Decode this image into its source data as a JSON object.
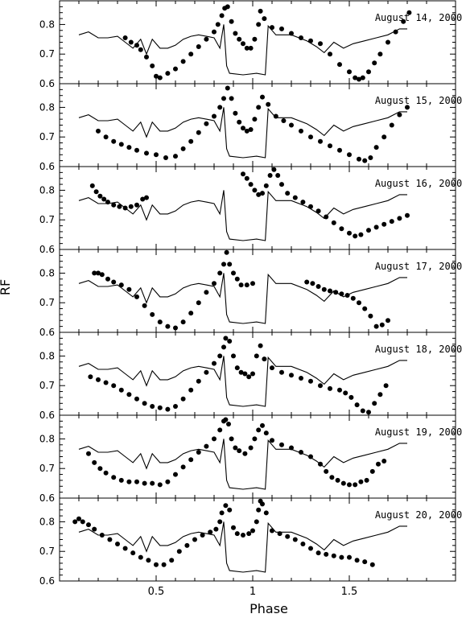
{
  "figure": {
    "xlabel": "Phase",
    "ylabel": "RF"
  },
  "chart_data": {
    "type": "scatter",
    "xlabel": "Phase",
    "ylabel": "RF",
    "xlim": [
      0.0,
      2.05
    ],
    "xticks": [
      0.5,
      1,
      1.5
    ],
    "xtick_labels": [
      "0.5",
      "1",
      "1.5"
    ],
    "panel_ylim": [
      0.6,
      0.88
    ],
    "yticks": [
      0.6,
      0.7,
      0.8
    ],
    "ytick_labels": [
      "0.6",
      "0.7",
      "0.8"
    ],
    "model_curve": {
      "x": [
        0.1,
        0.15,
        0.2,
        0.25,
        0.3,
        0.34,
        0.38,
        0.42,
        0.45,
        0.48,
        0.52,
        0.56,
        0.6,
        0.64,
        0.68,
        0.72,
        0.76,
        0.8,
        0.83,
        0.85,
        0.865,
        0.88,
        0.95,
        1.02,
        1.065,
        1.08,
        1.12,
        1.2,
        1.28,
        1.33,
        1.37,
        1.42,
        1.47,
        1.52,
        1.58,
        1.64,
        1.7,
        1.76,
        1.8
      ],
      "y": [
        0.765,
        0.775,
        0.755,
        0.755,
        0.76,
        0.74,
        0.72,
        0.75,
        0.7,
        0.75,
        0.72,
        0.72,
        0.73,
        0.75,
        0.76,
        0.765,
        0.76,
        0.755,
        0.72,
        0.8,
        0.66,
        0.635,
        0.63,
        0.635,
        0.63,
        0.795,
        0.765,
        0.765,
        0.745,
        0.725,
        0.705,
        0.74,
        0.72,
        0.735,
        0.745,
        0.755,
        0.765,
        0.785,
        0.785
      ]
    },
    "panels": [
      {
        "label": "August 14, 2000",
        "x": [
          0.34,
          0.37,
          0.4,
          0.42,
          0.45,
          0.48,
          0.5,
          0.52,
          0.56,
          0.6,
          0.64,
          0.68,
          0.72,
          0.76,
          0.8,
          0.82,
          0.84,
          0.855,
          0.87,
          0.89,
          0.91,
          0.93,
          0.95,
          0.97,
          0.99,
          1.01,
          1.03,
          1.04,
          1.06,
          1.1,
          1.15,
          1.2,
          1.25,
          1.3,
          1.35,
          1.4,
          1.45,
          1.5,
          1.53,
          1.55,
          1.57,
          1.6,
          1.63,
          1.66,
          1.7,
          1.74,
          1.78,
          1.81
        ],
        "y": [
          0.755,
          0.74,
          0.73,
          0.715,
          0.69,
          0.66,
          0.625,
          0.62,
          0.635,
          0.65,
          0.675,
          0.7,
          0.725,
          0.75,
          0.775,
          0.8,
          0.83,
          0.855,
          0.86,
          0.81,
          0.77,
          0.75,
          0.735,
          0.72,
          0.72,
          0.75,
          0.8,
          0.845,
          0.82,
          0.79,
          0.785,
          0.77,
          0.755,
          0.745,
          0.735,
          0.7,
          0.665,
          0.64,
          0.62,
          0.615,
          0.62,
          0.64,
          0.67,
          0.7,
          0.74,
          0.775,
          0.81,
          0.84
        ]
      },
      {
        "label": "August 15, 2000",
        "x": [
          0.2,
          0.24,
          0.28,
          0.32,
          0.36,
          0.4,
          0.45,
          0.5,
          0.55,
          0.6,
          0.64,
          0.68,
          0.72,
          0.76,
          0.8,
          0.83,
          0.85,
          0.87,
          0.89,
          0.91,
          0.93,
          0.95,
          0.97,
          0.99,
          1.01,
          1.03,
          1.05,
          1.08,
          1.12,
          1.16,
          1.2,
          1.25,
          1.3,
          1.35,
          1.4,
          1.45,
          1.5,
          1.55,
          1.58,
          1.61,
          1.64,
          1.68,
          1.72,
          1.76,
          1.8
        ],
        "y": [
          0.72,
          0.7,
          0.685,
          0.675,
          0.665,
          0.655,
          0.645,
          0.64,
          0.63,
          0.635,
          0.66,
          0.685,
          0.715,
          0.745,
          0.77,
          0.8,
          0.83,
          0.865,
          0.83,
          0.78,
          0.75,
          0.73,
          0.72,
          0.725,
          0.76,
          0.8,
          0.835,
          0.81,
          0.77,
          0.755,
          0.74,
          0.72,
          0.7,
          0.685,
          0.67,
          0.655,
          0.64,
          0.625,
          0.62,
          0.63,
          0.665,
          0.7,
          0.74,
          0.775,
          0.8
        ]
      },
      {
        "label": "August 16, 2000",
        "x": [
          0.17,
          0.19,
          0.21,
          0.23,
          0.25,
          0.28,
          0.31,
          0.34,
          0.37,
          0.4,
          0.43,
          0.45,
          0.95,
          0.97,
          0.99,
          1.01,
          1.03,
          1.05,
          1.07,
          1.09,
          1.11,
          1.13,
          1.15,
          1.18,
          1.22,
          1.26,
          1.3,
          1.34,
          1.38,
          1.42,
          1.46,
          1.5,
          1.53,
          1.56,
          1.6,
          1.64,
          1.68,
          1.72,
          1.76,
          1.8
        ],
        "y": [
          0.815,
          0.795,
          0.78,
          0.77,
          0.76,
          0.75,
          0.745,
          0.74,
          0.745,
          0.75,
          0.77,
          0.775,
          0.855,
          0.84,
          0.82,
          0.8,
          0.785,
          0.79,
          0.815,
          0.85,
          0.87,
          0.85,
          0.82,
          0.79,
          0.775,
          0.76,
          0.745,
          0.73,
          0.71,
          0.69,
          0.67,
          0.655,
          0.645,
          0.65,
          0.665,
          0.675,
          0.685,
          0.695,
          0.705,
          0.715
        ]
      },
      {
        "label": "August 17, 2000",
        "x": [
          0.18,
          0.2,
          0.22,
          0.25,
          0.28,
          0.32,
          0.36,
          0.4,
          0.44,
          0.48,
          0.52,
          0.56,
          0.6,
          0.64,
          0.68,
          0.72,
          0.76,
          0.8,
          0.83,
          0.85,
          0.865,
          0.88,
          0.9,
          0.92,
          0.94,
          0.97,
          1.0,
          1.28,
          1.31,
          1.34,
          1.37,
          1.4,
          1.43,
          1.46,
          1.49,
          1.52,
          1.55,
          1.58,
          1.61,
          1.64,
          1.67,
          1.7
        ],
        "y": [
          0.8,
          0.8,
          0.795,
          0.78,
          0.77,
          0.76,
          0.745,
          0.72,
          0.69,
          0.66,
          0.635,
          0.62,
          0.615,
          0.635,
          0.665,
          0.7,
          0.735,
          0.765,
          0.8,
          0.83,
          0.87,
          0.83,
          0.8,
          0.78,
          0.76,
          0.76,
          0.765,
          0.77,
          0.765,
          0.755,
          0.745,
          0.74,
          0.735,
          0.73,
          0.725,
          0.715,
          0.7,
          0.68,
          0.655,
          0.62,
          0.625,
          0.64
        ]
      },
      {
        "label": "August 18, 2000",
        "x": [
          0.16,
          0.2,
          0.24,
          0.28,
          0.32,
          0.36,
          0.4,
          0.44,
          0.48,
          0.52,
          0.56,
          0.6,
          0.64,
          0.68,
          0.72,
          0.76,
          0.8,
          0.83,
          0.85,
          0.86,
          0.88,
          0.9,
          0.92,
          0.94,
          0.96,
          0.98,
          1.0,
          1.02,
          1.04,
          1.06,
          1.1,
          1.15,
          1.2,
          1.25,
          1.3,
          1.35,
          1.4,
          1.45,
          1.48,
          1.51,
          1.54,
          1.57,
          1.6,
          1.63,
          1.66,
          1.69
        ],
        "y": [
          0.73,
          0.72,
          0.71,
          0.7,
          0.685,
          0.67,
          0.655,
          0.64,
          0.63,
          0.625,
          0.62,
          0.63,
          0.655,
          0.685,
          0.715,
          0.745,
          0.775,
          0.8,
          0.83,
          0.86,
          0.85,
          0.8,
          0.76,
          0.745,
          0.74,
          0.73,
          0.74,
          0.8,
          0.835,
          0.79,
          0.76,
          0.745,
          0.735,
          0.725,
          0.715,
          0.7,
          0.69,
          0.685,
          0.675,
          0.66,
          0.635,
          0.615,
          0.61,
          0.64,
          0.67,
          0.7
        ]
      },
      {
        "label": "August 19, 2000",
        "x": [
          0.15,
          0.18,
          0.21,
          0.24,
          0.28,
          0.32,
          0.36,
          0.4,
          0.44,
          0.48,
          0.52,
          0.56,
          0.6,
          0.64,
          0.68,
          0.72,
          0.76,
          0.8,
          0.83,
          0.85,
          0.86,
          0.875,
          0.89,
          0.91,
          0.93,
          0.96,
          0.99,
          1.01,
          1.03,
          1.05,
          1.07,
          1.1,
          1.15,
          1.2,
          1.25,
          1.3,
          1.35,
          1.38,
          1.41,
          1.44,
          1.47,
          1.5,
          1.53,
          1.56,
          1.59,
          1.62,
          1.65,
          1.68
        ],
        "y": [
          0.75,
          0.72,
          0.7,
          0.685,
          0.67,
          0.66,
          0.655,
          0.655,
          0.65,
          0.65,
          0.645,
          0.655,
          0.68,
          0.705,
          0.73,
          0.755,
          0.775,
          0.8,
          0.83,
          0.86,
          0.865,
          0.85,
          0.8,
          0.77,
          0.76,
          0.75,
          0.77,
          0.8,
          0.83,
          0.845,
          0.82,
          0.795,
          0.78,
          0.77,
          0.755,
          0.74,
          0.715,
          0.69,
          0.67,
          0.66,
          0.65,
          0.645,
          0.645,
          0.655,
          0.66,
          0.69,
          0.715,
          0.725
        ]
      },
      {
        "label": "August 20, 2000",
        "x": [
          0.08,
          0.1,
          0.12,
          0.15,
          0.18,
          0.22,
          0.26,
          0.3,
          0.34,
          0.38,
          0.42,
          0.46,
          0.5,
          0.54,
          0.58,
          0.62,
          0.66,
          0.7,
          0.74,
          0.78,
          0.81,
          0.83,
          0.84,
          0.86,
          0.88,
          0.9,
          0.92,
          0.95,
          0.98,
          1.0,
          1.02,
          1.03,
          1.04,
          1.05,
          1.07,
          1.1,
          1.14,
          1.18,
          1.22,
          1.26,
          1.3,
          1.34,
          1.38,
          1.42,
          1.46,
          1.5,
          1.54,
          1.58,
          1.62
        ],
        "y": [
          0.8,
          0.81,
          0.8,
          0.79,
          0.775,
          0.755,
          0.74,
          0.725,
          0.71,
          0.695,
          0.68,
          0.67,
          0.655,
          0.655,
          0.67,
          0.7,
          0.72,
          0.74,
          0.755,
          0.765,
          0.775,
          0.8,
          0.83,
          0.855,
          0.84,
          0.78,
          0.76,
          0.755,
          0.76,
          0.77,
          0.8,
          0.84,
          0.87,
          0.86,
          0.83,
          0.77,
          0.76,
          0.75,
          0.74,
          0.725,
          0.71,
          0.695,
          0.69,
          0.685,
          0.68,
          0.68,
          0.67,
          0.665,
          0.655
        ]
      }
    ]
  }
}
